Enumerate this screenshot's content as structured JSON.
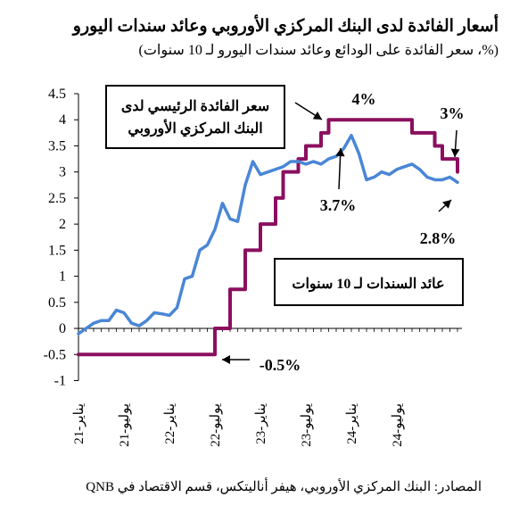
{
  "chart_data": {
    "type": "line",
    "title": "أسعار الفائدة لدى البنك المركزي الأوروبي وعائد سندات اليورو",
    "subtitle": "(%، سعر الفائدة على الودائع وعائد سندات اليورو لـ 10 سنوات)",
    "source": "المصادر: البنك المركزي الأوروبي، هيفر أناليتكس، قسم الاقتصاد في QNB",
    "ylim": [
      -1,
      4.5
    ],
    "yticks": [
      "4.5",
      "4",
      "3.5",
      "3",
      "2.5",
      "2",
      "1.5",
      "1",
      "0.5",
      "0",
      "-0.5",
      "-1"
    ],
    "xtick_labels": [
      "يناير-21",
      "يوليو-21",
      "يناير-22",
      "يوليو-22",
      "يناير-23",
      "يوليو-23",
      "يناير-24",
      "يوليو-24"
    ],
    "grid": false,
    "series": [
      {
        "name": "سعر الفائدة الرئيسي لدى البنك المركزي الأوروبي",
        "color": "#8b0f5f",
        "values": [
          -0.5,
          -0.5,
          -0.5,
          -0.5,
          -0.5,
          -0.5,
          -0.5,
          -0.5,
          -0.5,
          -0.5,
          -0.5,
          -0.5,
          -0.5,
          -0.5,
          -0.5,
          -0.5,
          -0.5,
          -0.5,
          0,
          0,
          0.75,
          0.75,
          1.5,
          1.5,
          2,
          2,
          2.5,
          3,
          3,
          3.25,
          3.5,
          3.5,
          3.75,
          4,
          4,
          4,
          4,
          4,
          4,
          4,
          4,
          4,
          4,
          4,
          3.75,
          3.75,
          3.75,
          3.5,
          3.25,
          3.25,
          3
        ]
      },
      {
        "name": "عائد السندات لـ 10 سنوات",
        "color": "#4a86d6",
        "values": [
          -0.1,
          0,
          0.1,
          0.15,
          0.15,
          0.35,
          0.3,
          0.1,
          0.05,
          0.15,
          0.3,
          0.28,
          0.25,
          0.4,
          0.95,
          1,
          1.5,
          1.6,
          1.9,
          2.4,
          2.1,
          2.05,
          2.75,
          3.2,
          2.95,
          3,
          3.05,
          3.1,
          3.2,
          3.2,
          3.15,
          3.2,
          3.15,
          3.25,
          3.3,
          3.45,
          3.7,
          3.35,
          2.85,
          2.9,
          3,
          2.95,
          3.05,
          3.1,
          3.15,
          3.05,
          2.9,
          2.85,
          2.85,
          2.9,
          2.8
        ]
      }
    ],
    "annotations": [
      {
        "text": "4%"
      },
      {
        "text": "3%"
      },
      {
        "text": "3.7%"
      },
      {
        "text": "2.8%"
      },
      {
        "text": "-0.5%"
      }
    ],
    "legend_boxes": [
      {
        "text_lines": [
          "سعر الفائدة الرئيسي لدى",
          "البنك المركزي الأوروبي"
        ]
      },
      {
        "text_lines": [
          "عائد السندات  لـ 10 سنوات"
        ]
      }
    ]
  }
}
